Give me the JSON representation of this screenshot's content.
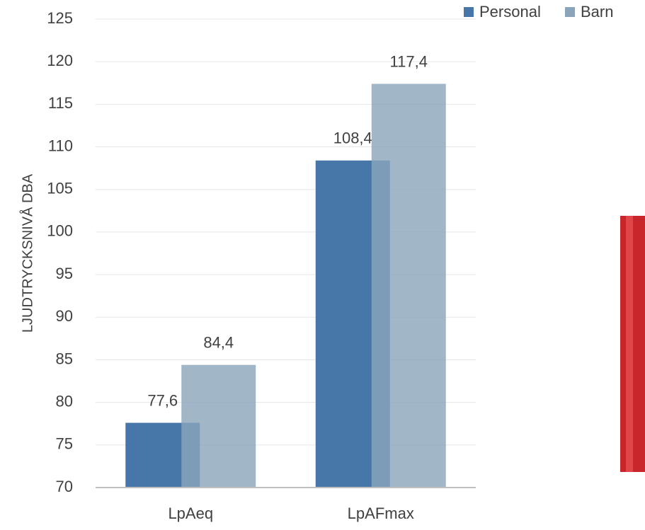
{
  "chart_data": {
    "type": "bar",
    "y_label": "LJUDTRYCKSNIVÅ DBA",
    "categories": [
      "LpAeq",
      "LpAFmax"
    ],
    "series": [
      {
        "name": "Personal",
        "color": "#4677a8",
        "values": [
          77.6,
          108.4
        ],
        "value_labels": [
          "77,6",
          "108,4"
        ]
      },
      {
        "name": "Barn",
        "color": "#8aa5ba",
        "values": [
          84.4,
          117.4
        ],
        "value_labels": [
          "84,4",
          "117,4"
        ]
      }
    ],
    "ylim": [
      70,
      125
    ],
    "yticks": [
      70,
      75,
      80,
      85,
      90,
      95,
      100,
      105,
      110,
      115,
      120,
      125
    ],
    "grid": true,
    "legend": "top-right"
  }
}
